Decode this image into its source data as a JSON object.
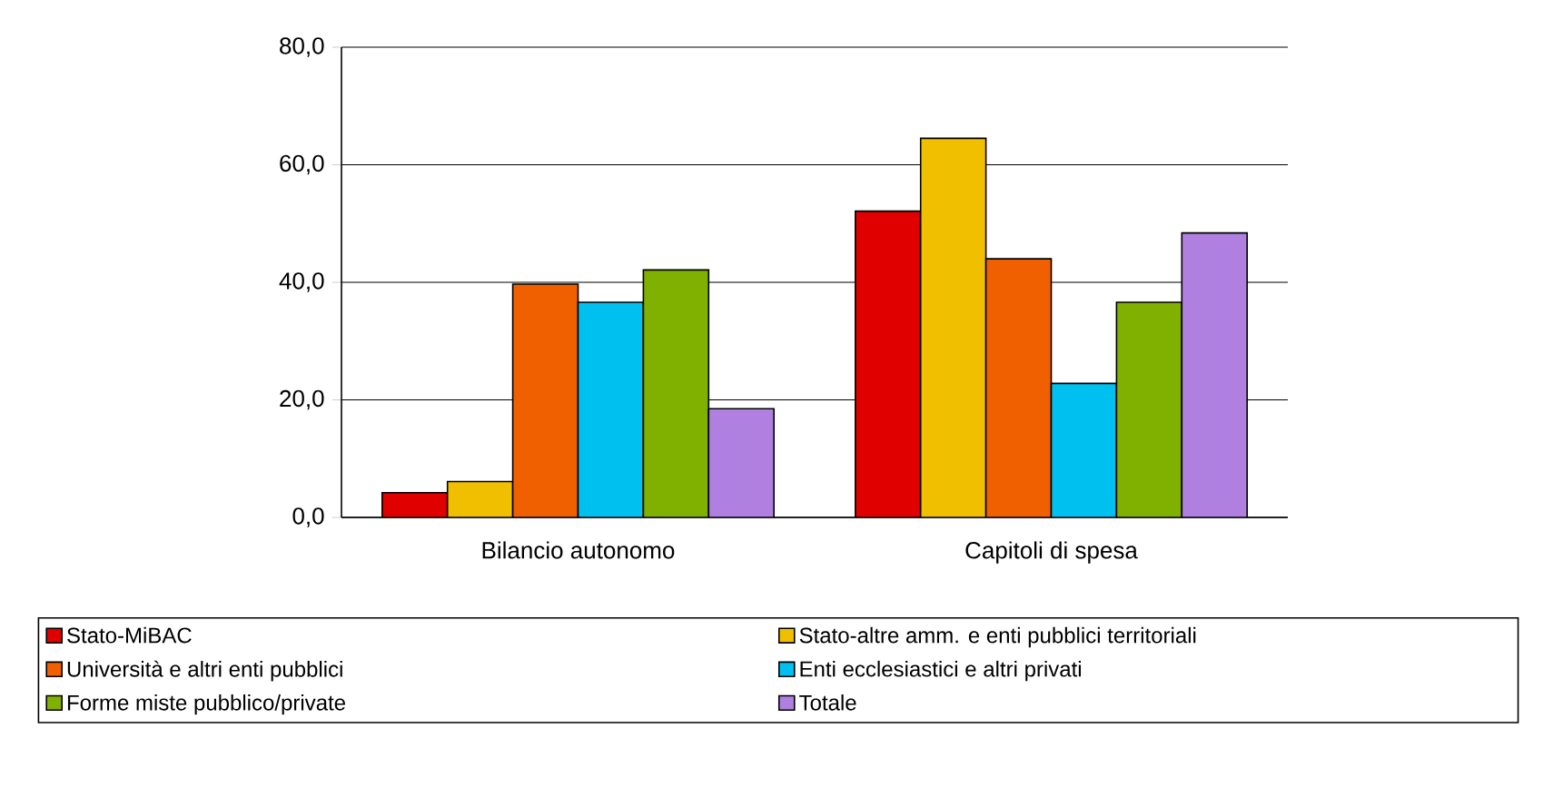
{
  "chart_data": {
    "type": "bar",
    "categories": [
      "Bilancio autonomo",
      "Capitoli di spesa"
    ],
    "series": [
      {
        "name": "Stato-MiBAC",
        "color": "#e00000",
        "values": [
          4.2,
          52.1
        ]
      },
      {
        "name": "Stato-altre amm. e enti pubblici territoriali",
        "color": "#f0c000",
        "values": [
          6.1,
          64.5
        ]
      },
      {
        "name": "Università e altri enti pubblici",
        "color": "#f06000",
        "values": [
          39.7,
          44.0
        ]
      },
      {
        "name": "Enti ecclesiastici e altri privati",
        "color": "#00c0f0",
        "values": [
          36.6,
          22.8
        ]
      },
      {
        "name": "Forme miste pubblico/private",
        "color": "#80b000",
        "values": [
          42.1,
          36.6
        ]
      },
      {
        "name": "Totale",
        "color": "#b080e0",
        "values": [
          18.5,
          48.4
        ]
      }
    ],
    "ylim": [
      0,
      80
    ],
    "yticks": [
      {
        "value": 0,
        "label": "0,0"
      },
      {
        "value": 20,
        "label": "20,0"
      },
      {
        "value": 40,
        "label": "40,0"
      },
      {
        "value": 60,
        "label": "60,0"
      },
      {
        "value": 80,
        "label": "80,0"
      }
    ],
    "grid": "y",
    "legend": "bottom"
  }
}
